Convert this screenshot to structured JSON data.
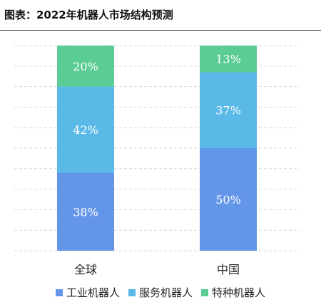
{
  "title": "图表：2022年机器人市场结构预测",
  "chart_data": {
    "type": "bar",
    "stacked": true,
    "percent": true,
    "categories": [
      "全球",
      "中国"
    ],
    "series": [
      {
        "name": "工业机器人",
        "values": [
          38,
          50
        ],
        "color": "#6396e8"
      },
      {
        "name": "服务机器人",
        "values": [
          42,
          37
        ],
        "color": "#5bb9e8"
      },
      {
        "name": "特种机器人",
        "values": [
          20,
          13
        ],
        "color": "#5ccc95"
      }
    ],
    "ylim": [
      0,
      100
    ],
    "data_labels": {
      "工业机器人": [
        "38%",
        "50%"
      ],
      "服务机器人": [
        "42%",
        "37%"
      ],
      "特种机器人": [
        "20%",
        "13%"
      ]
    },
    "grid": true,
    "legend": "bottom"
  }
}
